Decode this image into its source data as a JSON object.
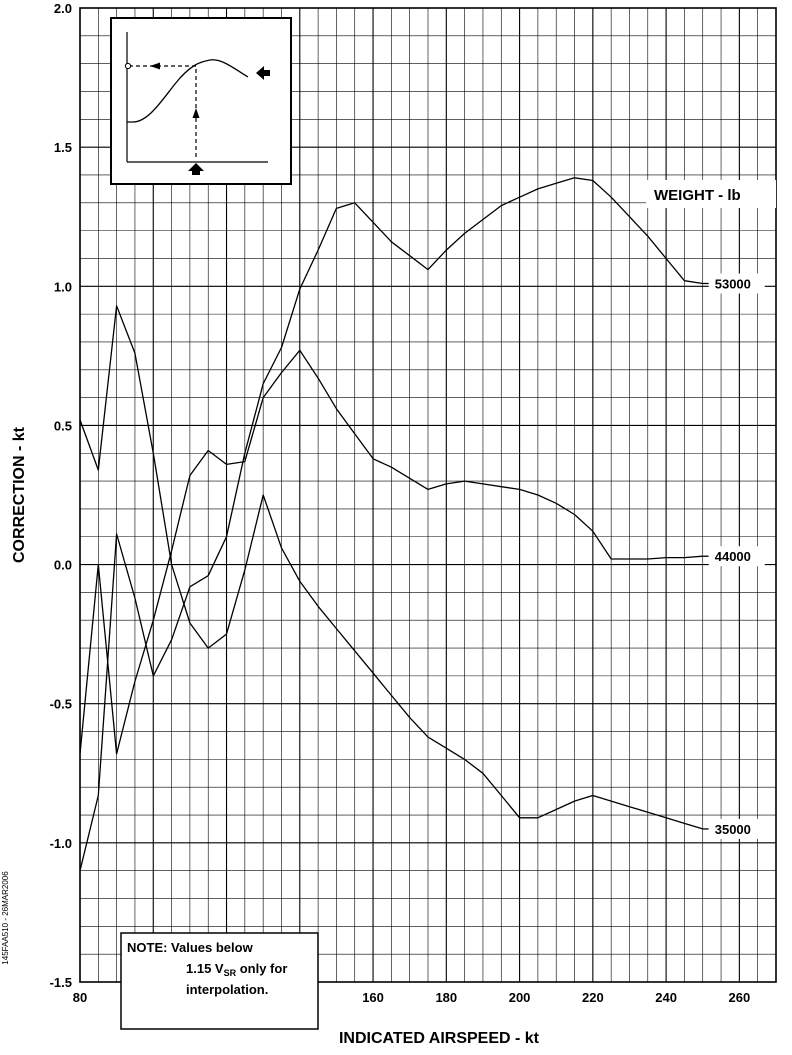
{
  "chart_data": {
    "type": "line",
    "title": "",
    "xlabel": "INDICATED AIRSPEED - kt",
    "ylabel": "CORRECTION - kt",
    "xlim": [
      80,
      270
    ],
    "ylim": [
      -1.5,
      2.0
    ],
    "x_ticks": [
      80,
      100,
      120,
      140,
      160,
      180,
      200,
      220,
      240,
      260
    ],
    "y_ticks": [
      -1.5,
      -1.0,
      -0.5,
      0.0,
      0.5,
      1.0,
      1.5,
      2.0
    ],
    "y_tick_labels": [
      "-1.5",
      "-1.0",
      "-0.5",
      "0.0",
      "0.5",
      "1.0",
      "1.5",
      "2.0"
    ],
    "x_minor_step": 5,
    "y_minor_step": 0.1,
    "grid": true,
    "legend_title": "WEIGHT - lb",
    "series": [
      {
        "name": "53000",
        "x": [
          80,
          85,
          90,
          95,
          100,
          105,
          110,
          115,
          120,
          125,
          130,
          135,
          140,
          145,
          150,
          155,
          160,
          165,
          170,
          175,
          180,
          185,
          190,
          195,
          200,
          205,
          210,
          215,
          220,
          225,
          230,
          235,
          240,
          245,
          250
        ],
        "y": [
          -1.1,
          -0.83,
          0.11,
          -0.12,
          -0.4,
          -0.27,
          -0.08,
          -0.04,
          0.1,
          0.4,
          0.65,
          0.78,
          0.99,
          1.13,
          1.28,
          1.3,
          1.23,
          1.16,
          1.11,
          1.06,
          1.13,
          1.19,
          1.24,
          1.29,
          1.32,
          1.35,
          1.37,
          1.39,
          1.38,
          1.32,
          1.25,
          1.18,
          1.1,
          1.02,
          1.01
        ]
      },
      {
        "name": "44000",
        "x": [
          80,
          85,
          90,
          95,
          100,
          105,
          110,
          115,
          120,
          125,
          130,
          135,
          140,
          145,
          150,
          155,
          160,
          165,
          170,
          175,
          180,
          185,
          190,
          195,
          200,
          205,
          210,
          215,
          220,
          225,
          230,
          235,
          240,
          245,
          250
        ],
        "y": [
          -0.68,
          0.0,
          -0.68,
          -0.42,
          -0.2,
          0.05,
          0.32,
          0.41,
          0.36,
          0.37,
          0.6,
          0.69,
          0.77,
          0.67,
          0.56,
          0.47,
          0.38,
          0.35,
          0.31,
          0.27,
          0.29,
          0.3,
          0.29,
          0.28,
          0.27,
          0.25,
          0.22,
          0.18,
          0.12,
          0.02,
          0.02,
          0.02,
          0.025,
          0.025,
          0.03
        ]
      },
      {
        "name": "35000",
        "x": [
          80,
          85,
          90,
          95,
          100,
          105,
          110,
          115,
          120,
          125,
          130,
          135,
          140,
          145,
          150,
          155,
          160,
          165,
          170,
          175,
          180,
          185,
          190,
          195,
          200,
          205,
          210,
          215,
          220,
          225,
          230,
          235,
          240,
          245,
          250
        ],
        "y": [
          0.52,
          0.34,
          0.93,
          0.76,
          0.4,
          0.0,
          -0.21,
          -0.3,
          -0.25,
          -0.02,
          0.25,
          0.06,
          -0.06,
          -0.15,
          -0.23,
          -0.31,
          -0.39,
          -0.47,
          -0.55,
          -0.62,
          -0.66,
          -0.7,
          -0.75,
          -0.83,
          -0.91,
          -0.91,
          -0.88,
          -0.85,
          -0.83,
          -0.85,
          -0.87,
          -0.89,
          -0.91,
          -0.93,
          -0.95
        ]
      }
    ],
    "note": {
      "line1": "NOTE: Values below",
      "line2_prefix": "1.15 V",
      "line2_sub": "SR",
      "line2_suffix": " only for",
      "line3": "interpolation."
    },
    "figure_code": "145FAA510 - 26MAR2006"
  }
}
